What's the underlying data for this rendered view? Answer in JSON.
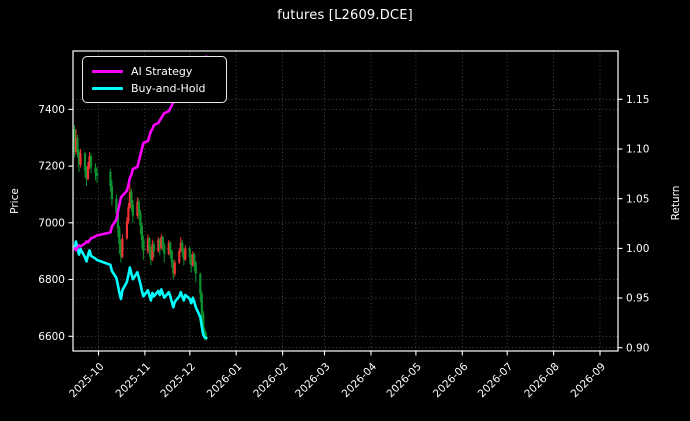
{
  "title": "futures [L2609.DCE]",
  "chart_data": {
    "type": "candlestick+line",
    "title": "futures [L2609.DCE]",
    "style": {
      "background": "#000000",
      "text_color": "#ffffff",
      "grid_color": "#7a7a7a",
      "spine_color": "#ffffff",
      "grid_style": "dotted",
      "legend_position": "upper-left"
    },
    "x_axis": {
      "domain": [
        "2025-09-14",
        "2026-09-13"
      ],
      "tick_dates": [
        "2025-10-01",
        "2025-11-01",
        "2025-12-01",
        "2026-01-01",
        "2026-02-01",
        "2026-03-01",
        "2026-04-01",
        "2026-05-01",
        "2026-06-01",
        "2026-07-01",
        "2026-08-01",
        "2026-09-01"
      ],
      "tick_labels": [
        "2025-10",
        "2025-11",
        "2025-12",
        "2026-01",
        "2026-02",
        "2026-03",
        "2026-04",
        "2026-05",
        "2026-06",
        "2026-07",
        "2026-08",
        "2026-09"
      ]
    },
    "y_left": {
      "label": "Price",
      "range": [
        6548,
        7606
      ],
      "tick_values": [
        6600,
        6800,
        7000,
        7200,
        7400
      ],
      "tick_labels": [
        "6600",
        "6800",
        "7000",
        "7200",
        "7400"
      ]
    },
    "y_right": {
      "label": "Return",
      "range": [
        0.8967,
        1.1986
      ],
      "tick_values": [
        0.9,
        0.95,
        1.0,
        1.05,
        1.1,
        1.15
      ],
      "tick_labels": [
        "0.90",
        "0.95",
        "1.00",
        "1.05",
        "1.10",
        "1.15"
      ]
    },
    "legend": {
      "items": [
        {
          "label": "AI Strategy",
          "color": "#ff00ff"
        },
        {
          "label": "Buy-and-Hold",
          "color": "#00ffff"
        }
      ]
    },
    "candles": {
      "up_color": "#f03232",
      "down_color": "#0e9230",
      "dates": [
        "2025-09-15",
        "2025-09-16",
        "2025-09-17",
        "2025-09-18",
        "2025-09-19",
        "2025-09-22",
        "2025-09-23",
        "2025-09-24",
        "2025-09-25",
        "2025-09-26",
        "2025-09-29",
        "2025-09-30",
        "2025-10-09",
        "2025-10-10",
        "2025-10-13",
        "2025-10-14",
        "2025-10-15",
        "2025-10-16",
        "2025-10-17",
        "2025-10-20",
        "2025-10-21",
        "2025-10-22",
        "2025-10-23",
        "2025-10-24",
        "2025-10-27",
        "2025-10-28",
        "2025-10-29",
        "2025-10-30",
        "2025-10-31",
        "2025-11-03",
        "2025-11-04",
        "2025-11-05",
        "2025-11-06",
        "2025-11-07",
        "2025-11-10",
        "2025-11-11",
        "2025-11-12",
        "2025-11-13",
        "2025-11-14",
        "2025-11-17",
        "2025-11-18",
        "2025-11-19",
        "2025-11-20",
        "2025-11-21",
        "2025-11-24",
        "2025-11-25",
        "2025-11-26",
        "2025-11-27",
        "2025-11-28",
        "2025-12-01",
        "2025-12-02",
        "2025-12-03",
        "2025-12-04",
        "2025-12-05",
        "2025-12-08",
        "2025-12-09",
        "2025-12-10",
        "2025-12-11",
        "2025-12-12"
      ],
      "open": [
        7330,
        7250,
        7300,
        7250,
        7205,
        7245,
        7185,
        7155,
        7200,
        7235,
        7195,
        7175,
        7180,
        7130,
        7085,
        7035,
        6980,
        6925,
        6880,
        6945,
        7005,
        7055,
        7110,
        7065,
        7025,
        7075,
        7035,
        6990,
        6940,
        6900,
        6945,
        6905,
        6870,
        6925,
        6900,
        6940,
        6910,
        6950,
        6920,
        6890,
        6930,
        6900,
        6860,
        6820,
        6860,
        6900,
        6930,
        6900,
        6870,
        6910,
        6880,
        6850,
        6890,
        6860,
        6820,
        6750,
        6680,
        6620,
        6600
      ],
      "high": [
        7345,
        7330,
        7310,
        7260,
        7260,
        7250,
        7200,
        7215,
        7250,
        7245,
        7210,
        7195,
        7190,
        7150,
        7100,
        7050,
        6990,
        6940,
        6960,
        7020,
        7070,
        7135,
        7120,
        7080,
        7090,
        7085,
        7045,
        7000,
        6955,
        6960,
        6950,
        6915,
        6940,
        6935,
        6950,
        6945,
        6960,
        6955,
        6930,
        6940,
        6935,
        6905,
        6870,
        6870,
        6910,
        6950,
        6940,
        6910,
        6920,
        6915,
        6890,
        6900,
        6895,
        6865,
        6825,
        6760,
        6690,
        6630,
        6615
      ],
      "low": [
        7230,
        7240,
        7230,
        7180,
        7195,
        7160,
        7130,
        7150,
        7190,
        7175,
        7150,
        7140,
        7110,
        7060,
        7010,
        6950,
        6890,
        6860,
        6875,
        6940,
        6995,
        7050,
        7040,
        7000,
        7015,
        7010,
        6960,
        6910,
        6870,
        6890,
        6880,
        6850,
        6865,
        6880,
        6895,
        6885,
        6905,
        6900,
        6860,
        6885,
        6875,
        6840,
        6800,
        6810,
        6855,
        6895,
        6880,
        6850,
        6865,
        6855,
        6825,
        6845,
        6830,
        6790,
        6720,
        6650,
        6600,
        6585,
        6585
      ],
      "close": [
        7250,
        7300,
        7250,
        7205,
        7245,
        7185,
        7155,
        7200,
        7235,
        7195,
        7175,
        7165,
        7130,
        7085,
        7035,
        6980,
        6925,
        6880,
        6945,
        7005,
        7055,
        7110,
        7065,
        7025,
        7075,
        7035,
        6990,
        6940,
        6900,
        6945,
        6905,
        6870,
        6925,
        6900,
        6940,
        6910,
        6950,
        6920,
        6890,
        6930,
        6900,
        6860,
        6820,
        6860,
        6900,
        6930,
        6900,
        6870,
        6910,
        6880,
        6850,
        6890,
        6860,
        6820,
        6750,
        6680,
        6620,
        6600,
        6595
      ]
    },
    "series": [
      {
        "name": "AI Strategy",
        "axis": "right",
        "color": "#ff00ff",
        "line_width": 2.6,
        "values": [
          1.0,
          0.998,
          1.001,
          1.003,
          1.002,
          1.005,
          1.007,
          1.006,
          1.008,
          1.01,
          1.012,
          1.013,
          1.016,
          1.022,
          1.029,
          1.037,
          1.044,
          1.051,
          1.053,
          1.058,
          1.064,
          1.071,
          1.074,
          1.08,
          1.082,
          1.088,
          1.094,
          1.1,
          1.106,
          1.108,
          1.113,
          1.118,
          1.12,
          1.124,
          1.126,
          1.129,
          1.131,
          1.134,
          1.136,
          1.138,
          1.141,
          1.144,
          1.147,
          1.148,
          1.15,
          1.152,
          1.153,
          1.154,
          1.156,
          1.157,
          1.158,
          1.159,
          1.16,
          1.162,
          1.166,
          1.174,
          1.183,
          1.19,
          1.193
        ]
      },
      {
        "name": "Buy-and-Hold",
        "axis": "right",
        "color": "#00ffff",
        "line_width": 2.6,
        "values": [
          1.0,
          1.0069,
          1.0,
          0.9938,
          0.9993,
          0.991,
          0.9869,
          0.9931,
          0.9979,
          0.9924,
          0.9897,
          0.9883,
          0.9834,
          0.9772,
          0.9703,
          0.9628,
          0.9552,
          0.949,
          0.9579,
          0.9662,
          0.9731,
          0.9807,
          0.9745,
          0.969,
          0.9759,
          0.9703,
          0.9641,
          0.9572,
          0.9517,
          0.9579,
          0.9524,
          0.9476,
          0.9552,
          0.9517,
          0.9572,
          0.9531,
          0.9586,
          0.9545,
          0.9503,
          0.9559,
          0.9517,
          0.9462,
          0.9407,
          0.9462,
          0.9517,
          0.9559,
          0.9517,
          0.9476,
          0.9531,
          0.949,
          0.9448,
          0.9503,
          0.9462,
          0.9407,
          0.931,
          0.9214,
          0.9131,
          0.9103,
          0.9097
        ]
      }
    ]
  }
}
